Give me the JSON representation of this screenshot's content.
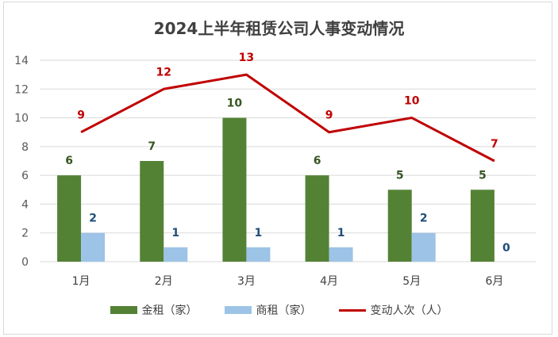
{
  "chart_data": {
    "type": "bar+line",
    "title": "2024上半年租赁公司人事变动情况",
    "categories": [
      "1月",
      "2月",
      "3月",
      "4月",
      "5月",
      "6月"
    ],
    "series": [
      {
        "name": "金租（家）",
        "type": "bar",
        "color": "#548235",
        "label_color": "#375623",
        "values": [
          6,
          7,
          10,
          6,
          5,
          5
        ]
      },
      {
        "name": "商租（家）",
        "type": "bar",
        "color": "#9dc3e6",
        "label_color": "#1f4e79",
        "values": [
          2,
          1,
          1,
          1,
          2,
          0
        ]
      },
      {
        "name": "变动人次（人）",
        "type": "line",
        "color": "#c00000",
        "label_color": "#c00000",
        "values": [
          9,
          12,
          13,
          9,
          10,
          7
        ]
      }
    ],
    "yticks": [
      0,
      2,
      4,
      6,
      8,
      10,
      12,
      14
    ],
    "ylim": [
      0,
      14
    ],
    "grid": true,
    "legend": "bottom"
  }
}
